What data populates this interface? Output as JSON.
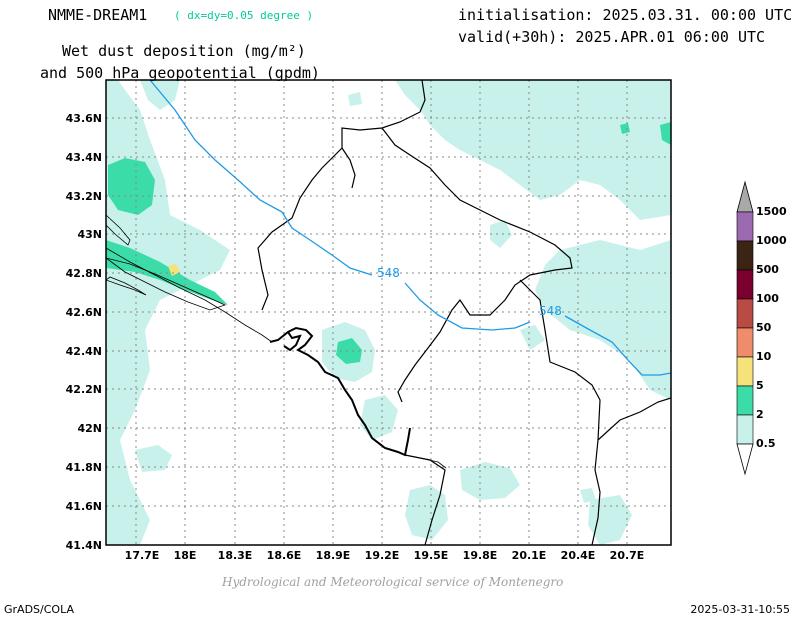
{
  "header": {
    "model": "NMME-DREAM1",
    "resolution": "( dx=dy=0.05 degree )",
    "variable_line1": "Wet dust deposition (mg/m²)",
    "variable_line2": "and 500 hPa geopotential (gpdm)",
    "init": "initialisation: 2025.03.31. 00:00 UTC",
    "valid": "valid(+30h): 2025.APR.01 06:00 UTC"
  },
  "map": {
    "lat_labels": [
      "43.6N",
      "43.4N",
      "43.2N",
      "43N",
      "42.8N",
      "42.6N",
      "42.4N",
      "42.2N",
      "42N",
      "41.8N",
      "41.6N",
      "41.4N"
    ],
    "lon_labels": [
      "17.7E",
      "18E",
      "18.3E",
      "18.6E",
      "18.9E",
      "19.2E",
      "19.5E",
      "19.8E",
      "20.1E",
      "20.4E",
      "20.7E"
    ],
    "contour_labels": [
      "548",
      "548"
    ],
    "contour_color": "#1e9be6",
    "frame_color": "#000000",
    "grid_color": "#888888"
  },
  "legend": {
    "labels": [
      "1500",
      "1000",
      "500",
      "100",
      "50",
      "10",
      "5",
      "2",
      "0.5"
    ],
    "colors": [
      "#9c6ab0",
      "#3b2414",
      "#7a0030",
      "#b84c44",
      "#ef8c6c",
      "#f5e27a",
      "#3cdca8",
      "#c8f1ec"
    ],
    "top_arrow_color": "#a9a9a9"
  },
  "footer": {
    "credit": "Hydrological and Meteorological service of Montenegro",
    "software": "GrADS/COLA",
    "timestamp": "2025-03-31-10:55"
  }
}
